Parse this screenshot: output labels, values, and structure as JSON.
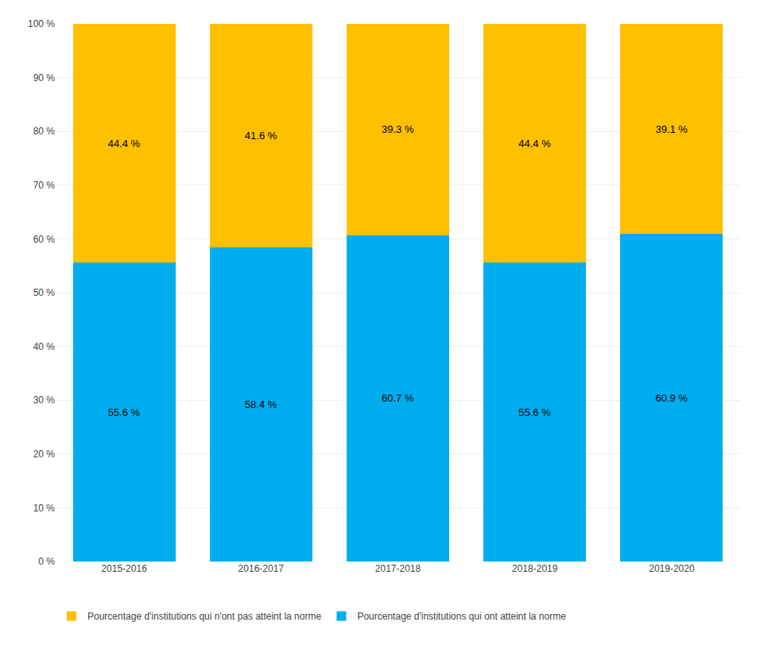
{
  "chart_data": {
    "type": "bar",
    "stacked": true,
    "categories": [
      "2015-2016",
      "2016-2017",
      "2017-2018",
      "2018-2019",
      "2019-2020"
    ],
    "series": [
      {
        "name": "Pourcentage d'institutions qui ont atteint la norme",
        "color": "#00AEEF",
        "values": [
          55.6,
          58.4,
          60.7,
          55.6,
          60.9
        ],
        "value_labels": [
          "55.6 %",
          "58.4 %",
          "60.7 %",
          "55.6 %",
          "60.9 %"
        ]
      },
      {
        "name": "Pourcentage d'institutions qui n'ont pas atteint la norme",
        "color": "#FFC000",
        "values": [
          44.4,
          41.6,
          39.3,
          44.4,
          39.1
        ],
        "value_labels": [
          "44.4 %",
          "41.6 %",
          "39.3 %",
          "44.4 %",
          "39.1 %"
        ]
      }
    ],
    "ylim": [
      0,
      100
    ],
    "yticks": [
      {
        "value": 0,
        "label": "0 %"
      },
      {
        "value": 10,
        "label": "10 %"
      },
      {
        "value": 20,
        "label": "20 %"
      },
      {
        "value": 30,
        "label": "30 %"
      },
      {
        "value": 40,
        "label": "40 %"
      },
      {
        "value": 50,
        "label": "50 %"
      },
      {
        "value": 60,
        "label": "60 %"
      },
      {
        "value": 70,
        "label": "70 %"
      },
      {
        "value": 80,
        "label": "80 %"
      },
      {
        "value": 90,
        "label": "90 %"
      },
      {
        "value": 100,
        "label": "100 %"
      }
    ],
    "grid": true,
    "legend": "bottom",
    "data_labels": true
  }
}
